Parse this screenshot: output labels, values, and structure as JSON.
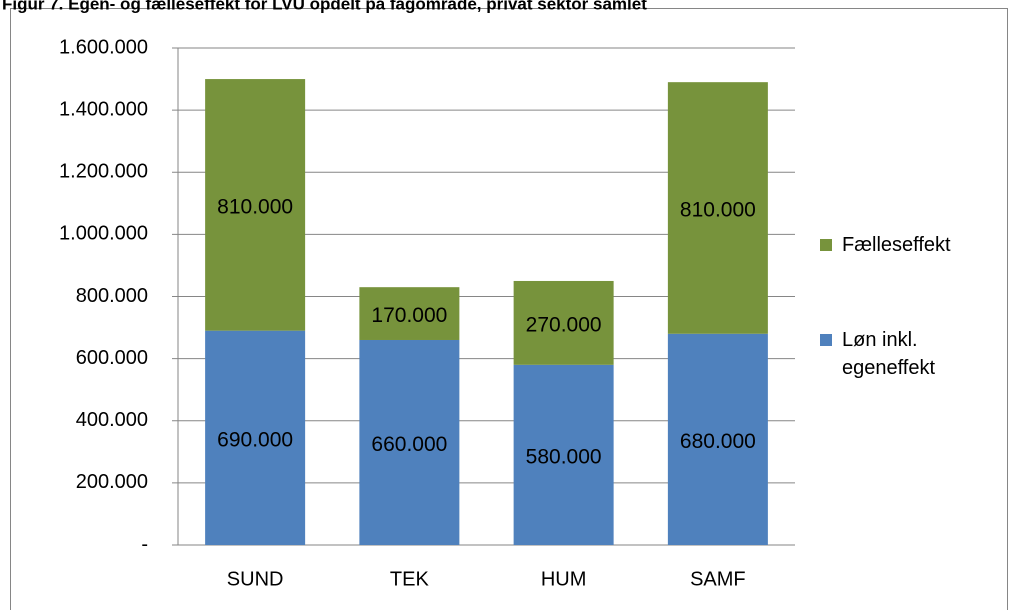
{
  "chart_data": {
    "type": "bar",
    "stacked": true,
    "title": "Figur 7. Egen- og fælleseffekt for LVU opdelt på fagområde, privat sektor samlet",
    "categories": [
      "SUND",
      "TEK",
      "HUM",
      "SAMF"
    ],
    "series": [
      {
        "name": "Løn inkl. egeneffekt",
        "color": "#4f81bd",
        "values": [
          690000,
          660000,
          580000,
          680000
        ],
        "value_labels": [
          "690.000",
          "660.000",
          "580.000",
          "680.000"
        ]
      },
      {
        "name": "Fælleseffekt",
        "color": "#77933c",
        "values": [
          810000,
          170000,
          270000,
          810000
        ],
        "value_labels": [
          "810.000",
          "170.000",
          "270.000",
          "810.000"
        ]
      }
    ],
    "ylim": [
      0,
      1600000
    ],
    "yticks": [
      {
        "value": 0,
        "label": "-"
      },
      {
        "value": 200000,
        "label": "200.000"
      },
      {
        "value": 400000,
        "label": "400.000"
      },
      {
        "value": 600000,
        "label": "600.000"
      },
      {
        "value": 800000,
        "label": "800.000"
      },
      {
        "value": 1000000,
        "label": "1.000.000"
      },
      {
        "value": 1200000,
        "label": "1.200.000"
      },
      {
        "value": 1400000,
        "label": "1.400.000"
      },
      {
        "value": 1600000,
        "label": "1.600.000"
      }
    ],
    "grid": true,
    "legend": "right"
  }
}
